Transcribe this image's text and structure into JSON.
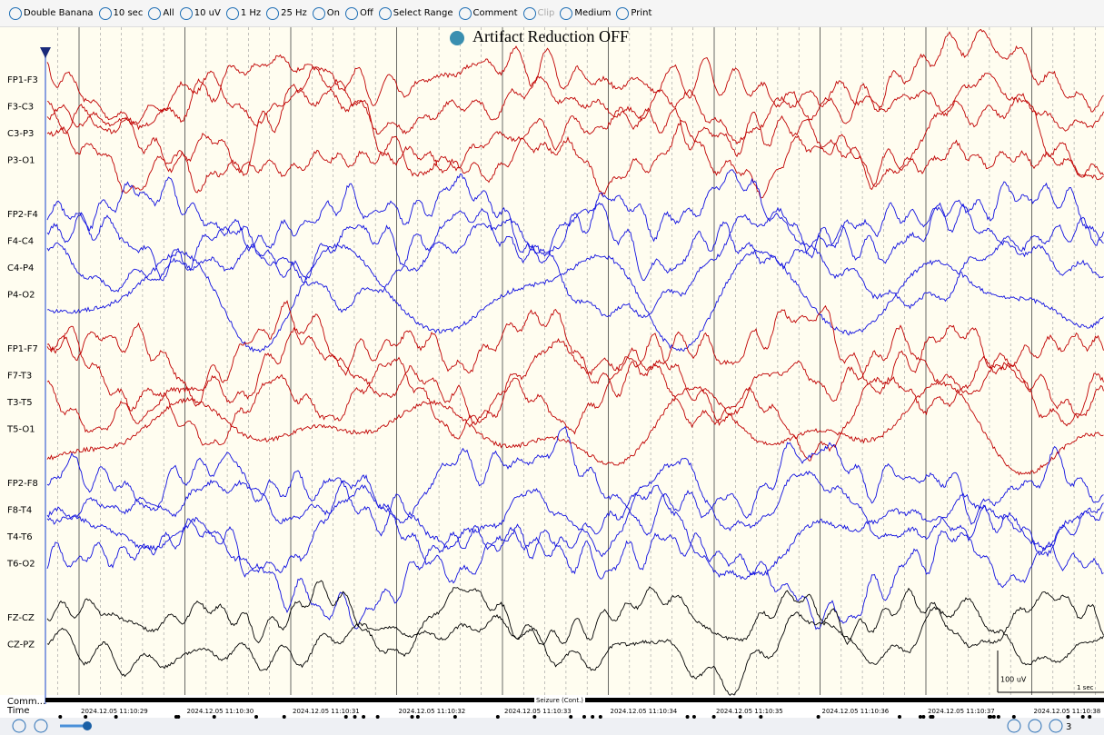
{
  "toolbar": {
    "items": [
      "Double Banana",
      "10 sec",
      "All",
      "10 uV",
      "1 Hz",
      "25 Hz",
      "On",
      "Off",
      "Select Range",
      "Comment",
      "Clip",
      "Medium",
      "Print"
    ]
  },
  "title": "Artifact Reduction OFF",
  "channels": [
    {
      "label": "FP1-F3",
      "color": "#c00000"
    },
    {
      "label": "F3-C3",
      "color": "#c00000"
    },
    {
      "label": "C3-P3",
      "color": "#c00000"
    },
    {
      "label": "P3-O1",
      "color": "#c00000"
    },
    {
      "label": "FP2-F4",
      "color": "#1010e0"
    },
    {
      "label": "F4-C4",
      "color": "#1010e0"
    },
    {
      "label": "C4-P4",
      "color": "#1010e0"
    },
    {
      "label": "P4-O2",
      "color": "#1010e0"
    },
    {
      "label": "FP1-F7",
      "color": "#c00000"
    },
    {
      "label": "F7-T3",
      "color": "#c00000"
    },
    {
      "label": "T3-T5",
      "color": "#c00000"
    },
    {
      "label": "T5-O1",
      "color": "#c00000"
    },
    {
      "label": "FP2-F8",
      "color": "#1010e0"
    },
    {
      "label": "F8-T4",
      "color": "#1010e0"
    },
    {
      "label": "T4-T6",
      "color": "#1010e0"
    },
    {
      "label": "T6-O2",
      "color": "#1010e0"
    },
    {
      "label": "FZ-CZ",
      "color": "#000000"
    },
    {
      "label": "CZ-PZ",
      "color": "#000000"
    }
  ],
  "rows": {
    "comment": "Comm...",
    "time": "Time"
  },
  "comment_label": "Seizure (Cont.)",
  "timestamps": [
    "2024.12.05 11:10:29",
    "2024.12.05 11:10:30",
    "2024.12.05 11:10:31",
    "2024.12.05 11:10:32",
    "2024.12.05 11:10:33",
    "2024.12.05 11:10:34",
    "2024.12.05 11:10:35",
    "2024.12.05 11:10:36",
    "2024.12.05 11:10:37",
    "2024.12.05 11:10:38"
  ],
  "scale": {
    "amplitude": "100 uV",
    "time": "1 sec"
  },
  "footer": {
    "page": "3"
  }
}
